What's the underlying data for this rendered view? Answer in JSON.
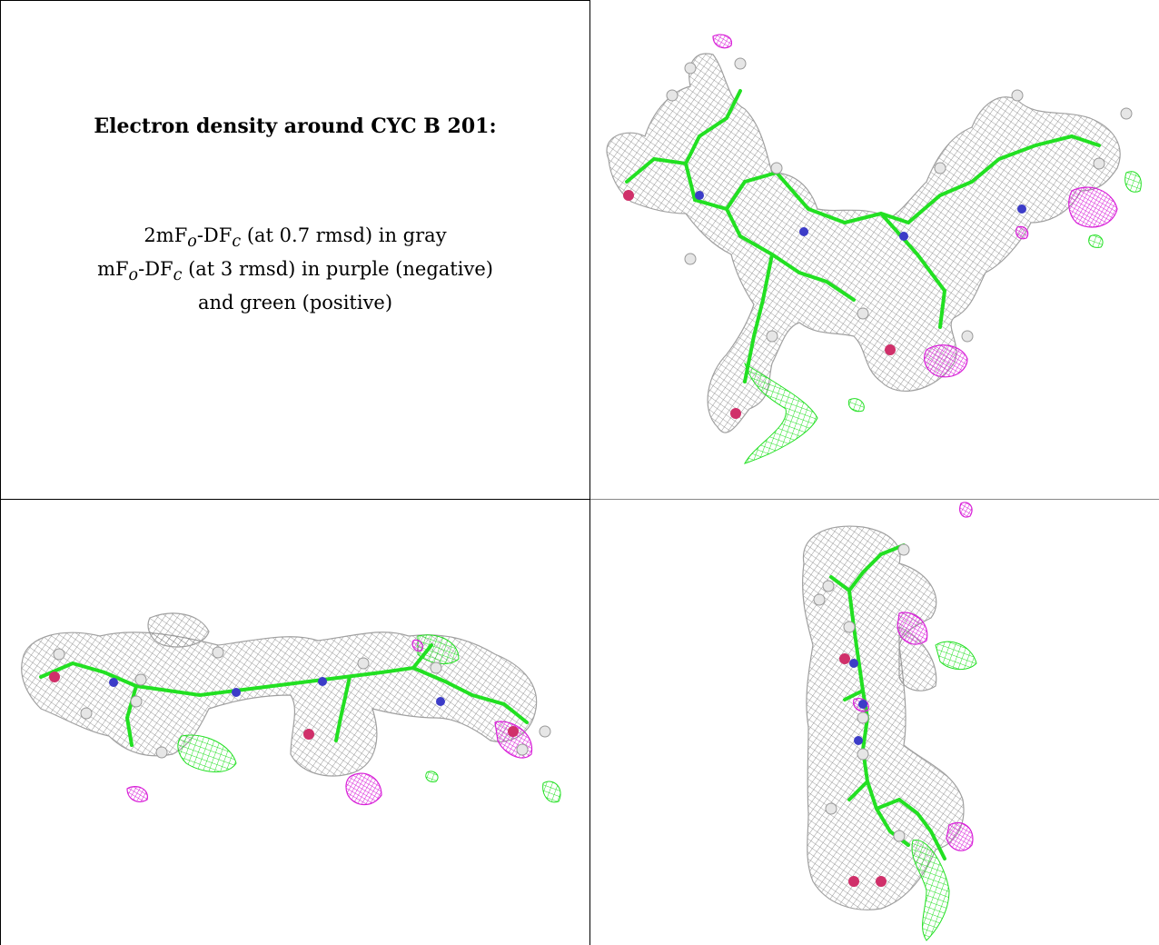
{
  "caption": {
    "title": "Electron density around CYC B 201:",
    "line1_a": "2mF",
    "line1_sub1": "o",
    "line1_b": "-DF",
    "line1_sub2": "c",
    "line1_c": " (at 0.7 rmsd) in gray",
    "line2_a": "mF",
    "line2_sub1": "o",
    "line2_b": "-DF",
    "line2_sub2": "c",
    "line2_c": " (at 3 rmsd) in purple (negative)",
    "line3": "and green (positive)"
  },
  "colors": {
    "mesh_gray": "#8a8a8a",
    "negative": "#d81fd8",
    "positive": "#22e022",
    "nitrogen": "#3c3cc8",
    "oxygen": "#d0306a",
    "hydrogen": "#e6e6e6",
    "border": "#000000"
  },
  "panels": [
    {
      "name": "top-right-view"
    },
    {
      "name": "bottom-left-view"
    },
    {
      "name": "bottom-right-view"
    }
  ]
}
